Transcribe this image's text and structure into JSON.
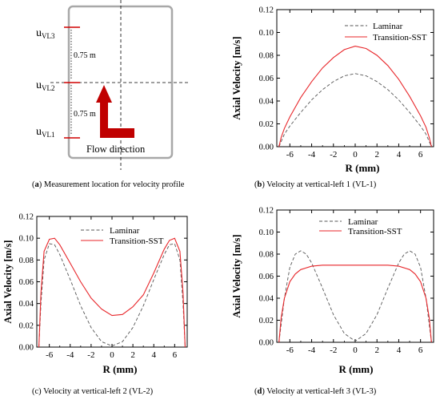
{
  "schematic": {
    "labels": [
      {
        "base": "u",
        "sub": "VL3"
      },
      {
        "base": "u",
        "sub": "VL2"
      },
      {
        "base": "u",
        "sub": "VL1"
      }
    ],
    "dist_upper": "0.75 m",
    "dist_lower": "0.75 m",
    "flow_label": "Flow direction",
    "colors": {
      "box": "#a8a8a8",
      "arrow": "#c00000",
      "tick": "#d00000"
    }
  },
  "captions": {
    "a": {
      "letter": "a",
      "text": " Measurement location for velocity profile"
    },
    "b": {
      "letter": "b",
      "text": " Velocity at vertical-left 1 (VL-1)"
    },
    "c": {
      "letter": "c",
      "text": " Velocity at vertical-left 2 (VL-2)"
    },
    "d": {
      "letter": "d",
      "text": " Velocity at vertical-left 3 (VL-3)"
    }
  },
  "chart_data": [
    {
      "type": "line",
      "panel": "b",
      "xlabel": "R (mm)",
      "ylabel": "Axial Velocity [m/s]",
      "xlim": [
        -7.2,
        7.2
      ],
      "ylim": [
        0,
        0.12
      ],
      "xticks": [
        -6,
        -4,
        -2,
        0,
        2,
        4,
        6
      ],
      "yticks": [
        0.0,
        0.02,
        0.04,
        0.06,
        0.08,
        0.1,
        0.12
      ],
      "ytick_labels": [
        "0.00",
        "0.02",
        "0.04",
        "0.06",
        "0.08",
        "0.10",
        "0.12"
      ],
      "legend": "top-right",
      "series": [
        {
          "name": "Laminar",
          "style": "dashed",
          "color": "#555555",
          "x": [
            -7,
            -6.5,
            -6,
            -5,
            -4,
            -3,
            -2,
            -1,
            0,
            1,
            2,
            3,
            4,
            5,
            6,
            6.5,
            7
          ],
          "y": [
            0.0,
            0.011,
            0.018,
            0.03,
            0.041,
            0.05,
            0.057,
            0.062,
            0.064,
            0.062,
            0.057,
            0.05,
            0.041,
            0.03,
            0.018,
            0.011,
            0.0
          ]
        },
        {
          "name": "Transition-SST",
          "style": "solid",
          "color": "#e8262a",
          "x": [
            -7,
            -6.8,
            -6.5,
            -6,
            -5,
            -4,
            -3,
            -2,
            -1,
            0,
            1,
            2,
            3,
            4,
            5,
            6,
            6.5,
            6.8,
            7
          ],
          "y": [
            0.0,
            0.008,
            0.016,
            0.026,
            0.043,
            0.057,
            0.069,
            0.078,
            0.085,
            0.088,
            0.086,
            0.08,
            0.071,
            0.059,
            0.044,
            0.027,
            0.017,
            0.008,
            0.0
          ]
        }
      ]
    },
    {
      "type": "line",
      "panel": "c",
      "xlabel": "R (mm)",
      "ylabel": "Axial Velocity [m/s]",
      "xlim": [
        -7.2,
        7.2
      ],
      "ylim": [
        0,
        0.12
      ],
      "xticks": [
        -6,
        -4,
        -2,
        0,
        2,
        4,
        6
      ],
      "yticks": [
        0.0,
        0.02,
        0.04,
        0.06,
        0.08,
        0.1,
        0.12
      ],
      "ytick_labels": [
        "0.00",
        "0.02",
        "0.04",
        "0.06",
        "0.08",
        "0.10",
        "0.12"
      ],
      "legend": "top-center",
      "series": [
        {
          "name": "Laminar",
          "style": "dashed",
          "color": "#555555",
          "x": [
            -7,
            -6.8,
            -6.5,
            -6,
            -5.5,
            -5,
            -4,
            -3,
            -2,
            -1,
            0,
            1,
            2,
            3,
            4,
            5,
            5.5,
            6,
            6.5,
            6.8,
            7
          ],
          "y": [
            0.0,
            0.04,
            0.08,
            0.095,
            0.094,
            0.085,
            0.062,
            0.038,
            0.018,
            0.005,
            0.001,
            0.005,
            0.018,
            0.038,
            0.062,
            0.085,
            0.094,
            0.095,
            0.08,
            0.04,
            0.0
          ]
        },
        {
          "name": "Transition-SST",
          "style": "solid",
          "color": "#e8262a",
          "x": [
            -7,
            -6.8,
            -6.5,
            -6,
            -5.5,
            -5,
            -4,
            -3,
            -2,
            -1,
            0,
            1,
            2,
            3,
            4,
            5,
            5.5,
            6,
            6.5,
            6.8,
            7
          ],
          "y": [
            0.0,
            0.05,
            0.088,
            0.099,
            0.1,
            0.094,
            0.077,
            0.06,
            0.045,
            0.035,
            0.029,
            0.03,
            0.037,
            0.048,
            0.068,
            0.09,
            0.098,
            0.1,
            0.088,
            0.05,
            0.0
          ]
        }
      ]
    },
    {
      "type": "line",
      "panel": "d",
      "xlabel": "R (mm)",
      "ylabel": "Axial Velocity [m/s]",
      "xlim": [
        -7.2,
        7.2
      ],
      "ylim": [
        0,
        0.12
      ],
      "xticks": [
        -6,
        -4,
        -2,
        0,
        2,
        4,
        6
      ],
      "yticks": [
        0.0,
        0.02,
        0.04,
        0.06,
        0.08,
        0.1,
        0.12
      ],
      "ytick_labels": [
        "0.00",
        "0.02",
        "0.04",
        "0.06",
        "0.08",
        "0.10",
        "0.12"
      ],
      "legend": "top-center",
      "series": [
        {
          "name": "Laminar",
          "style": "dashed",
          "color": "#555555",
          "x": [
            -7,
            -6.5,
            -6,
            -5.5,
            -5,
            -4.5,
            -4,
            -3,
            -2,
            -1,
            0,
            1,
            2,
            3,
            4,
            4.5,
            5,
            5.5,
            6,
            6.5,
            7
          ],
          "y": [
            0.0,
            0.04,
            0.068,
            0.08,
            0.083,
            0.08,
            0.072,
            0.049,
            0.025,
            0.008,
            0.001,
            0.008,
            0.025,
            0.049,
            0.072,
            0.08,
            0.083,
            0.08,
            0.068,
            0.04,
            0.0
          ]
        },
        {
          "name": "Transition-SST",
          "style": "solid",
          "color": "#e8262a",
          "x": [
            -7,
            -6.8,
            -6.5,
            -6,
            -5.5,
            -5,
            -4,
            -3,
            -2,
            -1,
            0,
            1,
            2,
            3,
            4,
            5,
            5.5,
            6,
            6.5,
            6.8,
            7
          ],
          "y": [
            0.0,
            0.022,
            0.04,
            0.055,
            0.062,
            0.066,
            0.069,
            0.07,
            0.07,
            0.07,
            0.07,
            0.07,
            0.07,
            0.07,
            0.069,
            0.066,
            0.062,
            0.055,
            0.04,
            0.022,
            0.0
          ]
        }
      ]
    }
  ]
}
